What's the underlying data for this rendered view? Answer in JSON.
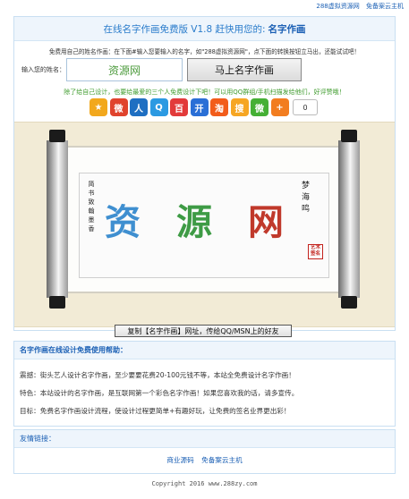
{
  "top_links": [
    "288虚拟资源网",
    "免备案云主机"
  ],
  "title": {
    "prefix": "在线名字作画免费版 V1.8 赶快用您的:",
    "highlight": "名字作画"
  },
  "hint": "免费用自己的姓名作画：在下面#输入您要输入的名字，如\"288虚拟资源网\"，点下面的转换按钮立马出，还能试试吧！",
  "input": {
    "label": "输入您的姓名：",
    "value": "资源网"
  },
  "make_button": "马上名字作画",
  "green_line": "除了给自己设计，也要给最爱的三个人免费设计下吧！可以用QQ群组/手机扫描发给他们，好评赞哦！",
  "share": {
    "icons": [
      {
        "name": "qzone-share-icon",
        "glyph": "★",
        "color": "#f2a81d"
      },
      {
        "name": "weibo-share-icon",
        "glyph": "微",
        "color": "#e0432d"
      },
      {
        "name": "renren-share-icon",
        "glyph": "人",
        "color": "#1f6fc2"
      },
      {
        "name": "tqq-share-icon",
        "glyph": "Q",
        "color": "#2b9ae2"
      },
      {
        "name": "baidu-share-icon",
        "glyph": "百",
        "color": "#e23a3a"
      },
      {
        "name": "kaixin-share-icon",
        "glyph": "开",
        "color": "#2a6fd6"
      },
      {
        "name": "taobao-share-icon",
        "glyph": "淘",
        "color": "#f25c1a"
      },
      {
        "name": "sohu-share-icon",
        "glyph": "搜",
        "color": "#f6a623"
      },
      {
        "name": "wechat-share-icon",
        "glyph": "微",
        "color": "#45b035"
      },
      {
        "name": "more-share-icon",
        "glyph": "+",
        "color": "#f27d20"
      }
    ],
    "count": "0"
  },
  "artwork": {
    "left_inscription": "简书致翰墨香",
    "right_inscription": "梦海鸣",
    "characters": [
      {
        "char": "资",
        "color": "#3f8fd0"
      },
      {
        "char": "源",
        "color": "#3e9b45"
      },
      {
        "char": "网",
        "color": "#c0392b"
      }
    ],
    "seal": "艺术签名"
  },
  "copy_button": "复制【名字作画】网址，传给QQ/MSN上的好友",
  "help": {
    "heading": "名字作画在线设计免费使用帮助：",
    "lines": [
      "震撼：街头艺人设计名字作画，至少要要花费20-100元钱不等，本站全免费设计名字作画！",
      "特色：本站设计的名字作画，是互联网第一个彩色名字作画！如果您喜欢我的话，请多宣传。",
      "目标：免费名字作画设计流程，使设计过程更简单+有趣好玩，让免费的签名业界更出彩！"
    ]
  },
  "friends": {
    "heading": "友情链接：",
    "links": [
      "商业源码",
      "免备案云主机"
    ]
  },
  "footer": "Copyright 2016 www.288zy.com"
}
